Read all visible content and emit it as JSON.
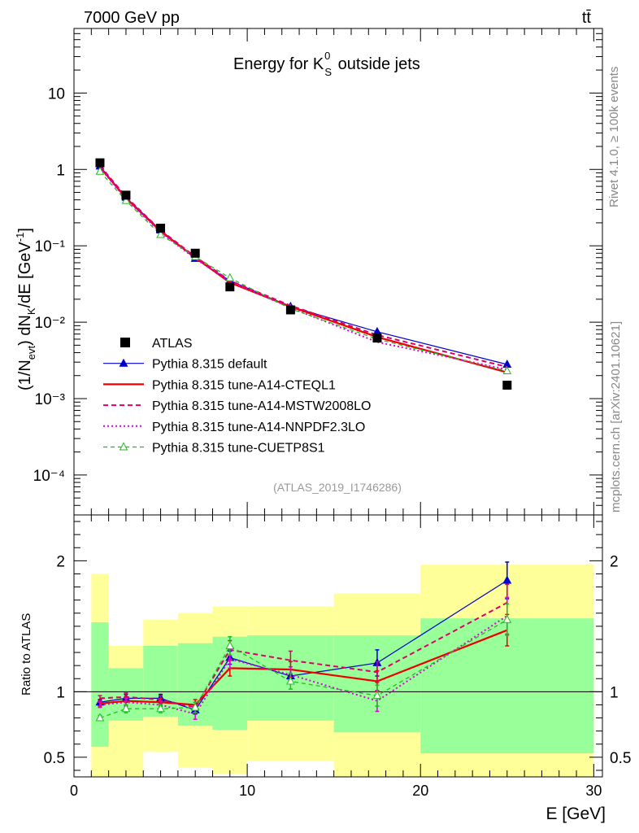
{
  "header": {
    "left": "7000 GeV pp",
    "right": "tt̄"
  },
  "side_labels": {
    "rivet": "Rivet 4.1.0, ≥ 100k events",
    "mcplots": "mcplots.cern.ch [arXiv:2401.10621]"
  },
  "colors": {
    "atlas": "#000000",
    "default": "#0000cc",
    "cteql1": "#ee0000",
    "mstw": "#dd0066",
    "nnpdf": "#dd00dd",
    "cuetp": "#22bb22",
    "band_outer": "#ffff99",
    "band_inner": "#99ff99"
  },
  "chart_data": {
    "type": "line",
    "title_prefix": "Energy for K",
    "title_sup": "0",
    "title_sub": "S",
    "title_suffix": " outside jets",
    "analysis_label": "(ATLAS_2019_I1746286)",
    "xlabel": "E [GeV]",
    "ylabel": "(1/N_evt) dN_K/dE [GeV^-1]",
    "ratio_ylabel": "Ratio to ATLAS",
    "xlim": [
      0,
      30.5
    ],
    "ylim_log": [
      3e-05,
      70
    ],
    "ratio_ylim": [
      0.35,
      2.35
    ],
    "x_ticks": [
      "0",
      "10",
      "20",
      "30"
    ],
    "y_ticks": [
      "10⁻⁴",
      "10⁻³",
      "10⁻²",
      "10⁻¹",
      "1",
      "10"
    ],
    "ratio_ticks": [
      "0.5",
      "1",
      "2"
    ],
    "x": [
      1.5,
      3,
      5,
      7,
      9,
      12.5,
      17.5,
      25
    ],
    "bins": [
      [
        1,
        2
      ],
      [
        2,
        4
      ],
      [
        4,
        6
      ],
      [
        6,
        8
      ],
      [
        8,
        10
      ],
      [
        10,
        15
      ],
      [
        15,
        20
      ],
      [
        20,
        30
      ]
    ],
    "atlas": {
      "name": "ATLAS",
      "values": [
        1.22,
        0.46,
        0.17,
        0.08,
        0.029,
        0.0145,
        0.0062,
        0.0015
      ]
    },
    "ratio_band": {
      "inner_low": [
        0.58,
        0.78,
        0.81,
        0.74,
        0.71,
        0.78,
        0.69,
        0.53
      ],
      "inner_high": [
        1.53,
        1.18,
        1.35,
        1.37,
        1.42,
        1.43,
        1.43,
        1.56
      ],
      "outer_low": [
        0.33,
        0.33,
        0.54,
        0.42,
        0.37,
        0.47,
        0.33,
        0.33
      ],
      "outer_high": [
        1.9,
        1.35,
        1.55,
        1.6,
        1.65,
        1.65,
        1.75,
        1.97
      ]
    },
    "series": [
      {
        "name": "Pythia 8.315 default",
        "key": "default",
        "values": [
          1.1,
          0.43,
          0.16,
          0.068,
          0.035,
          0.016,
          0.0075,
          0.0028
        ],
        "ratio": [
          0.92,
          0.95,
          0.95,
          0.86,
          1.26,
          1.12,
          1.22,
          1.85
        ],
        "ratio_err": [
          0.02,
          0.03,
          0.03,
          0.03,
          0.05,
          0.05,
          0.1,
          0.14
        ]
      },
      {
        "name": "Pythia 8.315 tune-A14-CTEQL1",
        "key": "cteql1",
        "values": [
          1.07,
          0.42,
          0.155,
          0.07,
          0.033,
          0.016,
          0.0064,
          0.0022
        ],
        "ratio": [
          0.91,
          0.93,
          0.92,
          0.9,
          1.18,
          1.17,
          1.08,
          1.47
        ],
        "ratio_err": [
          0.02,
          0.03,
          0.03,
          0.04,
          0.06,
          0.06,
          0.08,
          0.12
        ]
      },
      {
        "name": "Pythia 8.315 tune-A14-MSTW2008LO",
        "key": "mstw",
        "values": [
          1.12,
          0.44,
          0.16,
          0.072,
          0.035,
          0.0165,
          0.0068,
          0.0026
        ],
        "ratio": [
          0.95,
          0.96,
          0.94,
          0.88,
          1.32,
          1.24,
          1.15,
          1.68
        ],
        "ratio_err": [
          0.02,
          0.03,
          0.03,
          0.04,
          0.07,
          0.07,
          0.08,
          0.14
        ]
      },
      {
        "name": "Pythia 8.315 tune-A14-NNPDF2.3LO",
        "key": "nnpdf",
        "values": [
          1.05,
          0.41,
          0.15,
          0.068,
          0.034,
          0.0155,
          0.0055,
          0.0024
        ],
        "ratio": [
          0.9,
          0.92,
          0.9,
          0.83,
          1.25,
          1.13,
          0.93,
          1.58
        ],
        "ratio_err": [
          0.02,
          0.03,
          0.03,
          0.04,
          0.07,
          0.06,
          0.08,
          0.14
        ]
      },
      {
        "name": "Pythia 8.315 tune-CUETP8S1",
        "key": "cuetp",
        "values": [
          0.94,
          0.39,
          0.14,
          0.072,
          0.038,
          0.015,
          0.006,
          0.0023
        ],
        "ratio": [
          0.8,
          0.87,
          0.87,
          0.88,
          1.35,
          1.08,
          0.97,
          1.55
        ],
        "ratio_err": [
          0.02,
          0.03,
          0.03,
          0.04,
          0.07,
          0.06,
          0.08,
          0.12
        ]
      }
    ],
    "legend_position": "lower-left"
  }
}
